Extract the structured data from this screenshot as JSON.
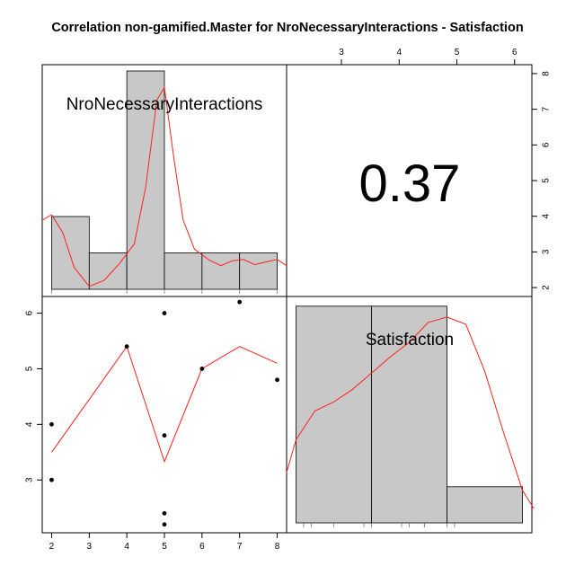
{
  "title": "Correlation non-gamified.Master for NroNecessaryInteractions - Satisfaction",
  "colors": {
    "hist_fill": "#c8c8c8",
    "density": "#ff2020",
    "frame": "#000000"
  },
  "chart_data": [
    {
      "type": "bar",
      "panel": "top-left",
      "label": "NroNecessaryInteractions",
      "bins": [
        [
          2,
          3
        ],
        [
          3,
          4
        ],
        [
          4,
          5
        ],
        [
          5,
          6
        ],
        [
          6,
          7
        ],
        [
          7,
          8
        ]
      ],
      "values": [
        2,
        1,
        6,
        1,
        1,
        1
      ],
      "xlim": [
        1.75,
        8.25
      ],
      "x_ticks": [
        2,
        3,
        4,
        5,
        6,
        7,
        8
      ],
      "density": [
        [
          1.75,
          1.9
        ],
        [
          2.0,
          2.05
        ],
        [
          2.3,
          1.55
        ],
        [
          2.6,
          0.6
        ],
        [
          3.0,
          0.08
        ],
        [
          3.4,
          0.25
        ],
        [
          3.8,
          0.7
        ],
        [
          4.2,
          1.25
        ],
        [
          4.5,
          2.8
        ],
        [
          4.8,
          5.2
        ],
        [
          5.0,
          5.55
        ],
        [
          5.25,
          3.6
        ],
        [
          5.5,
          1.9
        ],
        [
          5.8,
          1.1
        ],
        [
          6.2,
          0.8
        ],
        [
          6.5,
          0.65
        ],
        [
          6.8,
          0.78
        ],
        [
          7.1,
          0.82
        ],
        [
          7.4,
          0.68
        ],
        [
          7.7,
          0.75
        ],
        [
          8.0,
          0.82
        ],
        [
          8.25,
          0.65
        ]
      ],
      "rug": [
        2,
        4,
        5,
        6,
        7,
        8
      ]
    },
    {
      "type": "table",
      "panel": "top-right",
      "correlation": "0.37",
      "top_axis": {
        "range": [
          2.05,
          6.3
        ],
        "ticks": [
          3,
          4,
          5,
          6
        ]
      },
      "right_axis": {
        "range": [
          1.75,
          8.25
        ],
        "ticks": [
          2,
          3,
          4,
          5,
          6,
          7,
          8
        ]
      }
    },
    {
      "type": "scatter",
      "panel": "bottom-left",
      "x": [
        2,
        2,
        4,
        5,
        5,
        5,
        5,
        6,
        7,
        8
      ],
      "y": [
        4.0,
        3.0,
        5.4,
        6.0,
        3.8,
        2.4,
        2.2,
        5.0,
        6.2,
        4.8
      ],
      "xlim": [
        1.75,
        8.25
      ],
      "ylim": [
        2.05,
        6.3
      ],
      "x_ticks": [
        2,
        3,
        4,
        5,
        6,
        7,
        8
      ],
      "y_ticks": [
        3,
        4,
        5,
        6
      ],
      "smooth_line": [
        [
          2,
          3.5
        ],
        [
          4,
          5.4
        ],
        [
          5,
          3.33
        ],
        [
          6,
          5.0
        ],
        [
          7,
          5.4
        ],
        [
          8,
          5.1
        ]
      ]
    },
    {
      "type": "bar",
      "panel": "bottom-right",
      "label": "Satisfaction",
      "bins": [
        [
          2,
          4
        ],
        [
          4,
          6
        ],
        [
          6,
          8
        ]
      ],
      "values": [
        6,
        6,
        1
      ],
      "xlim": [
        1.75,
        8.25
      ],
      "density": [
        [
          1.75,
          1.4
        ],
        [
          2.0,
          2.3
        ],
        [
          2.5,
          3.1
        ],
        [
          3.0,
          3.35
        ],
        [
          3.5,
          3.7
        ],
        [
          4.0,
          4.15
        ],
        [
          4.5,
          4.6
        ],
        [
          5.0,
          5.0
        ],
        [
          5.5,
          5.55
        ],
        [
          6.0,
          5.7
        ],
        [
          6.5,
          5.5
        ],
        [
          7.0,
          4.2
        ],
        [
          7.5,
          2.5
        ],
        [
          8.0,
          0.9
        ],
        [
          8.3,
          0.4
        ]
      ],
      "rug": [
        2.2,
        2.4,
        3.0,
        3.8,
        4.0,
        4.8,
        5.0,
        5.4,
        5.4,
        6.0,
        6.2
      ]
    }
  ]
}
